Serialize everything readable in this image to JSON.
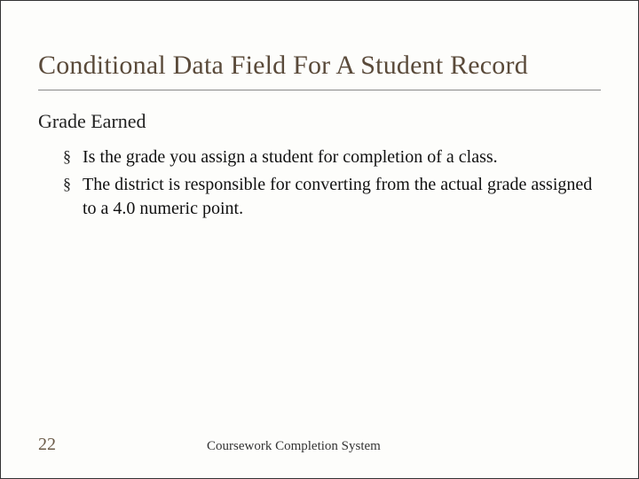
{
  "title": "Conditional Data Field For A Student Record",
  "subheading": "Grade Earned",
  "bullets": [
    "Is  the grade you assign a student for completion of a class.",
    "The district is responsible for converting from the actual grade assigned to a 4.0 numeric point."
  ],
  "footer": {
    "page": "22",
    "label": "Coursework Completion System"
  },
  "colors": {
    "title": "#5a4a3a",
    "text": "#111111",
    "pagenum": "#6a5a47",
    "background": "#fdfdfb",
    "divider": "#888888"
  },
  "typography": {
    "title_fontsize": 30,
    "subheading_fontsize": 22,
    "body_fontsize": 20,
    "footer_fontsize": 15,
    "pagenum_fontsize": 20,
    "font_family": "Georgia, serif"
  },
  "bullet_glyph": "§"
}
